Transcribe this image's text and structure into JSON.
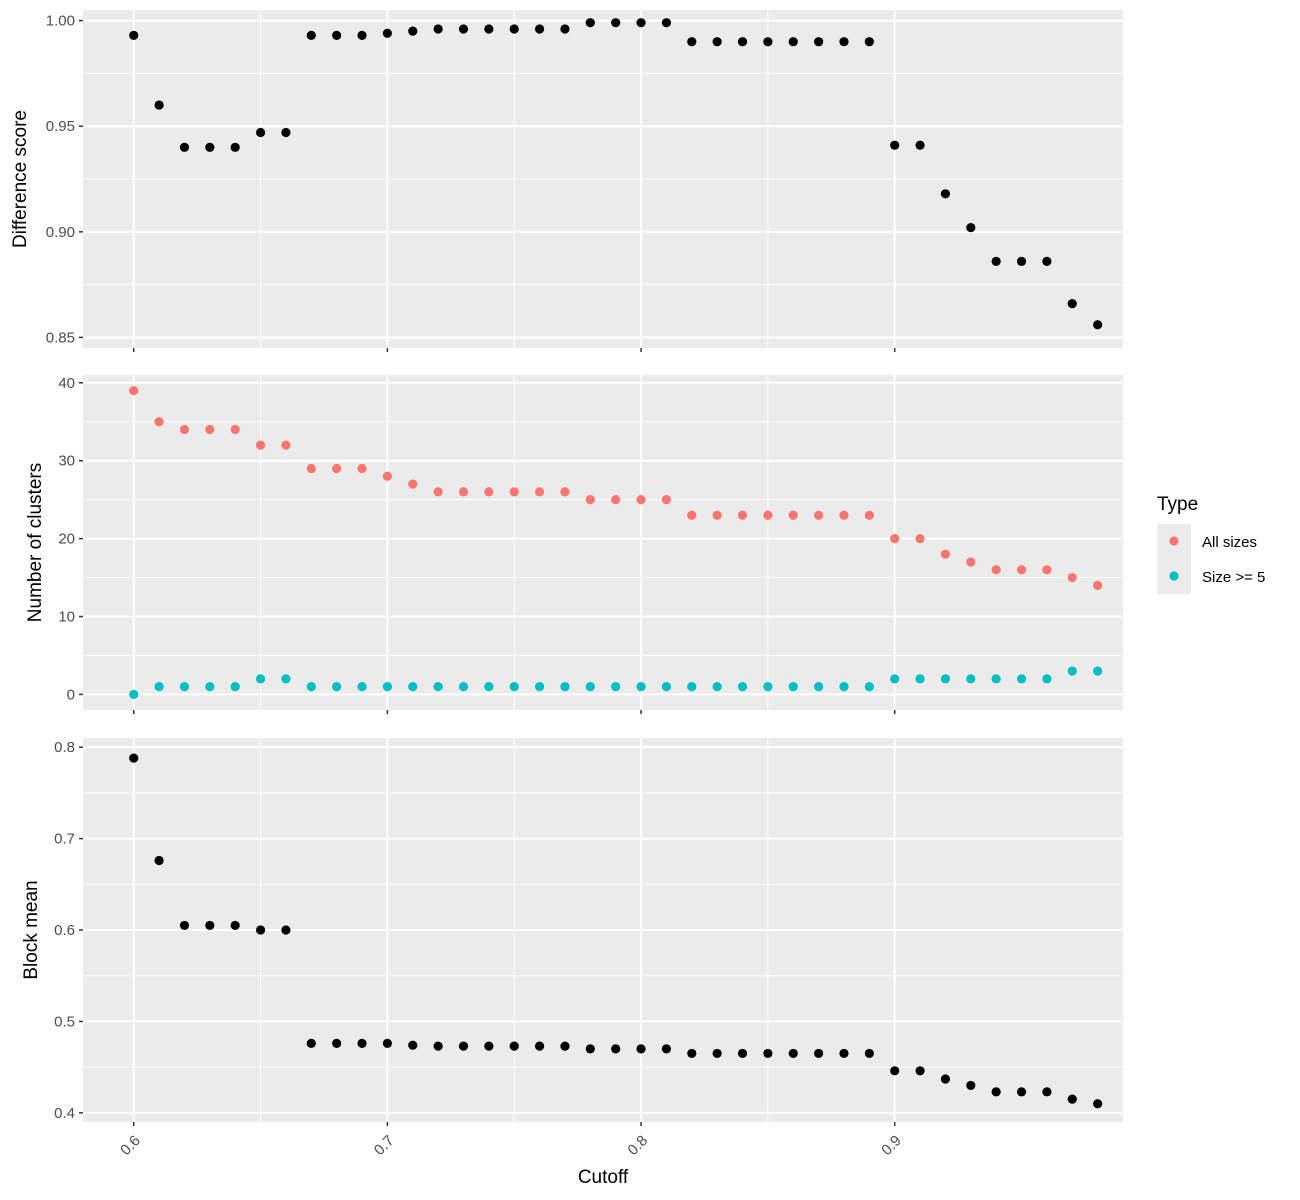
{
  "chart_data": {
    "type": "scatter",
    "xlabel": "Cutoff",
    "xlim": [
      0.58,
      0.99
    ],
    "x_ticks": [
      0.6,
      0.7,
      0.8,
      0.9
    ],
    "x_tick_labels": [
      "0.6",
      "0.7",
      "0.8",
      "0.9"
    ],
    "x": [
      0.6,
      0.61,
      0.62,
      0.63,
      0.64,
      0.65,
      0.66,
      0.67,
      0.68,
      0.69,
      0.7,
      0.71,
      0.72,
      0.73,
      0.74,
      0.75,
      0.76,
      0.77,
      0.78,
      0.79,
      0.8,
      0.81,
      0.82,
      0.83,
      0.84,
      0.85,
      0.86,
      0.87,
      0.88,
      0.89,
      0.9,
      0.91,
      0.92,
      0.93,
      0.94,
      0.95,
      0.96,
      0.97,
      0.98
    ],
    "grid": true,
    "background_color": "#ebebeb",
    "grid_color": "#ffffff",
    "panels": [
      {
        "ylabel": "Difference score",
        "ylim": [
          0.845,
          1.005
        ],
        "y_ticks": [
          0.85,
          0.9,
          0.95,
          1.0
        ],
        "y_tick_labels": [
          "0.85",
          "0.90",
          "0.95",
          "1.00"
        ],
        "series": [
          {
            "color": "#000000",
            "values": [
              0.993,
              0.96,
              0.94,
              0.94,
              0.94,
              0.947,
              0.947,
              0.993,
              0.993,
              0.993,
              0.994,
              0.995,
              0.996,
              0.996,
              0.996,
              0.996,
              0.996,
              0.996,
              0.999,
              0.999,
              0.999,
              0.999,
              0.99,
              0.99,
              0.99,
              0.99,
              0.99,
              0.99,
              0.99,
              0.99,
              0.941,
              0.941,
              0.918,
              0.902,
              0.886,
              0.886,
              0.886,
              0.866,
              0.856
            ]
          }
        ]
      },
      {
        "ylabel": "Number of clusters",
        "ylim": [
          -2,
          41
        ],
        "y_ticks": [
          0,
          10,
          20,
          30,
          40
        ],
        "y_tick_labels": [
          "0",
          "10",
          "20",
          "30",
          "40"
        ],
        "series": [
          {
            "name": "All sizes",
            "color": "#f8766d",
            "values": [
              39,
              35,
              34,
              34,
              34,
              32,
              32,
              29,
              29,
              29,
              28,
              27,
              26,
              26,
              26,
              26,
              26,
              26,
              25,
              25,
              25,
              25,
              23,
              23,
              23,
              23,
              23,
              23,
              23,
              23,
              20,
              20,
              18,
              17,
              16,
              16,
              16,
              15,
              14
            ]
          },
          {
            "name": "Size >= 5",
            "color": "#00bfc4",
            "values": [
              0,
              1,
              1,
              1,
              1,
              2,
              2,
              1,
              1,
              1,
              1,
              1,
              1,
              1,
              1,
              1,
              1,
              1,
              1,
              1,
              1,
              1,
              1,
              1,
              1,
              1,
              1,
              1,
              1,
              1,
              2,
              2,
              2,
              2,
              2,
              2,
              2,
              3,
              3
            ]
          }
        ]
      },
      {
        "ylabel": "Block mean",
        "ylim": [
          0.39,
          0.81
        ],
        "y_ticks": [
          0.4,
          0.5,
          0.6,
          0.7,
          0.8
        ],
        "y_tick_labels": [
          "0.4",
          "0.5",
          "0.6",
          "0.7",
          "0.8"
        ],
        "series": [
          {
            "color": "#000000",
            "values": [
              0.788,
              0.676,
              0.605,
              0.605,
              0.605,
              0.6,
              0.6,
              0.476,
              0.476,
              0.476,
              0.476,
              0.474,
              0.473,
              0.473,
              0.473,
              0.473,
              0.473,
              0.473,
              0.47,
              0.47,
              0.47,
              0.47,
              0.465,
              0.465,
              0.465,
              0.465,
              0.465,
              0.465,
              0.465,
              0.465,
              0.446,
              0.446,
              0.437,
              0.43,
              0.423,
              0.423,
              0.423,
              0.415,
              0.41
            ]
          }
        ]
      }
    ],
    "legend": {
      "title": "Type",
      "position": "right",
      "entries": [
        {
          "label": "All sizes",
          "color": "#f8766d"
        },
        {
          "label": "Size >= 5",
          "color": "#00bfc4"
        }
      ]
    }
  }
}
